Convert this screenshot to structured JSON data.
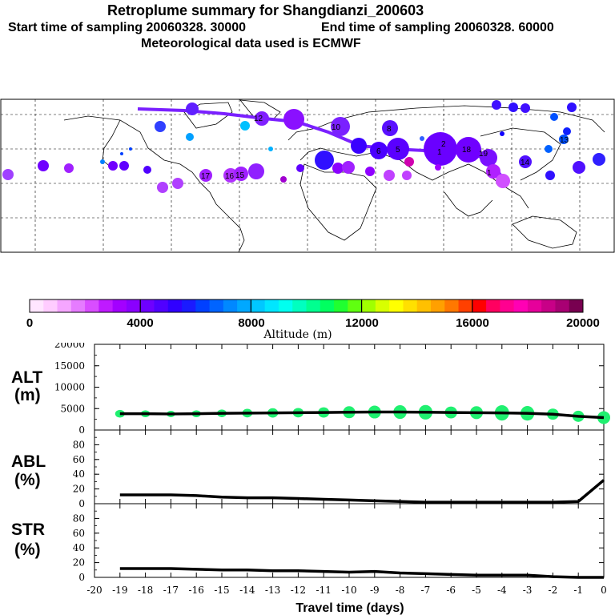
{
  "header": {
    "title": "Retroplume summary for Shangdianzi_200603",
    "start_label": "Start time of sampling 20060328. 30000",
    "end_label": "End time of sampling 20060328. 60000",
    "met_label": "Meteorological data used is ECMWF"
  },
  "colorbar": {
    "title": "Altitude (m)",
    "ticks": [
      "0",
      "4000",
      "8000",
      "12000",
      "16000",
      "20000"
    ],
    "colors": [
      "#ffe6ff",
      "#ffccff",
      "#f5a6ff",
      "#e67cff",
      "#d94dff",
      "#bf1aff",
      "#a300ff",
      "#8a00ff",
      "#6e00ff",
      "#5000ff",
      "#3000ff",
      "#1a1aff",
      "#0040ff",
      "#0064ff",
      "#0088ff",
      "#00a8ff",
      "#00c8ff",
      "#00e6ff",
      "#00fff0",
      "#00ffc0",
      "#00ff90",
      "#00ff60",
      "#20ff30",
      "#60ff10",
      "#a0ff00",
      "#d8ff00",
      "#ffff00",
      "#ffe000",
      "#ffc000",
      "#ffa000",
      "#ff7800",
      "#ff4000",
      "#ff0000",
      "#ff0060",
      "#ff0090",
      "#ff00b4",
      "#e6009b",
      "#c80087",
      "#a80073",
      "#780050"
    ]
  },
  "map_labels": [
    "1",
    "1",
    "2",
    "5",
    "6",
    "8",
    "10",
    "12",
    "13",
    "14",
    "15",
    "16",
    "17",
    "18",
    "19"
  ],
  "chart_data": [
    {
      "type": "line",
      "panel": "ALT",
      "ylabel": "ALT (m)",
      "ylabel_line1": "ALT",
      "ylabel_line2": "(m)",
      "ylim": [
        0,
        20000
      ],
      "yticks": [
        "0",
        "5000",
        "10000",
        "15000",
        "20000"
      ],
      "x": [
        -19,
        -18,
        -17,
        -16,
        -15,
        -14,
        -13,
        -12,
        -11,
        -10,
        -9,
        -8,
        -7,
        -6,
        -5,
        -4,
        -3,
        -2,
        -1,
        0
      ],
      "values": [
        3800,
        3800,
        3750,
        3800,
        3900,
        3950,
        4000,
        4050,
        4100,
        4150,
        4200,
        4200,
        4150,
        4100,
        4050,
        4000,
        3900,
        3700,
        3200,
        2900
      ],
      "spread": [
        900,
        800,
        700,
        800,
        900,
        1000,
        1100,
        1100,
        1200,
        1400,
        1500,
        1600,
        1700,
        1400,
        1500,
        1800,
        1700,
        1300,
        1300,
        1500
      ]
    },
    {
      "type": "line",
      "panel": "ABL",
      "ylabel_line1": "ABL",
      "ylabel_line2": "(%)",
      "ylim": [
        0,
        100
      ],
      "yticks": [
        "0",
        "20",
        "40",
        "60",
        "80"
      ],
      "x": [
        -19,
        -18,
        -17,
        -16,
        -15,
        -14,
        -13,
        -12,
        -11,
        -10,
        -9,
        -8,
        -7,
        -6,
        -5,
        -4,
        -3,
        -2,
        -1,
        0
      ],
      "values": [
        12,
        12,
        12,
        11,
        9,
        8,
        8,
        7,
        6,
        5,
        4,
        3,
        2,
        2,
        2,
        2,
        2,
        2,
        3,
        32
      ]
    },
    {
      "type": "line",
      "panel": "STR",
      "ylabel_line1": "STR",
      "ylabel_line2": "(%)",
      "ylim": [
        0,
        100
      ],
      "yticks": [
        "0",
        "20",
        "40",
        "60",
        "80"
      ],
      "x": [
        -19,
        -18,
        -17,
        -16,
        -15,
        -14,
        -13,
        -12,
        -11,
        -10,
        -9,
        -8,
        -7,
        -6,
        -5,
        -4,
        -3,
        -2,
        -1,
        0
      ],
      "values": [
        12,
        12,
        12,
        11,
        10,
        10,
        9,
        9,
        8,
        7,
        8,
        6,
        5,
        4,
        3,
        3,
        3,
        1,
        0,
        0
      ],
      "xlabel": "Travel time (days)",
      "xticks": [
        "-20",
        "-19",
        "-18",
        "-17",
        "-16",
        "-15",
        "-14",
        "-13",
        "-12",
        "-11",
        "-10",
        "-9",
        "-8",
        "-7",
        "-6",
        "-5",
        "-4",
        "-3",
        "-2",
        "-1",
        "0"
      ]
    }
  ]
}
